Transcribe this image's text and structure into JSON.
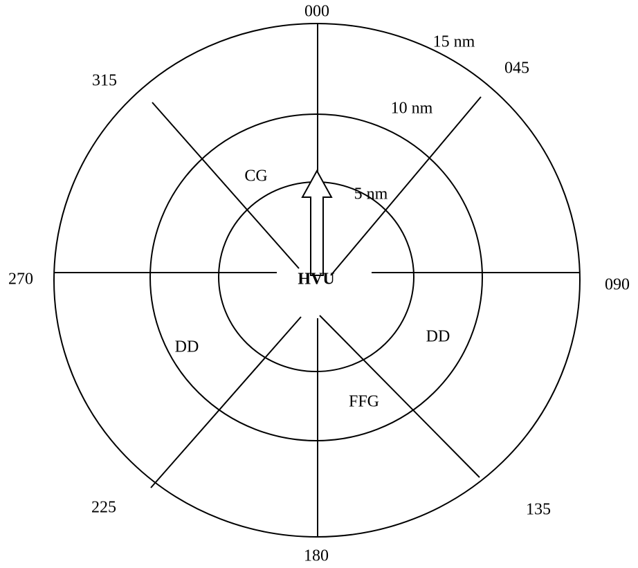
{
  "center_label": "HVU",
  "bearings": [
    "000",
    "045",
    "090",
    "135",
    "180",
    "225",
    "270",
    "315"
  ],
  "rings": [
    "5 nm",
    "10 nm",
    "15 nm"
  ],
  "units": [
    "CG",
    "DD",
    "DD",
    "FFG"
  ]
}
